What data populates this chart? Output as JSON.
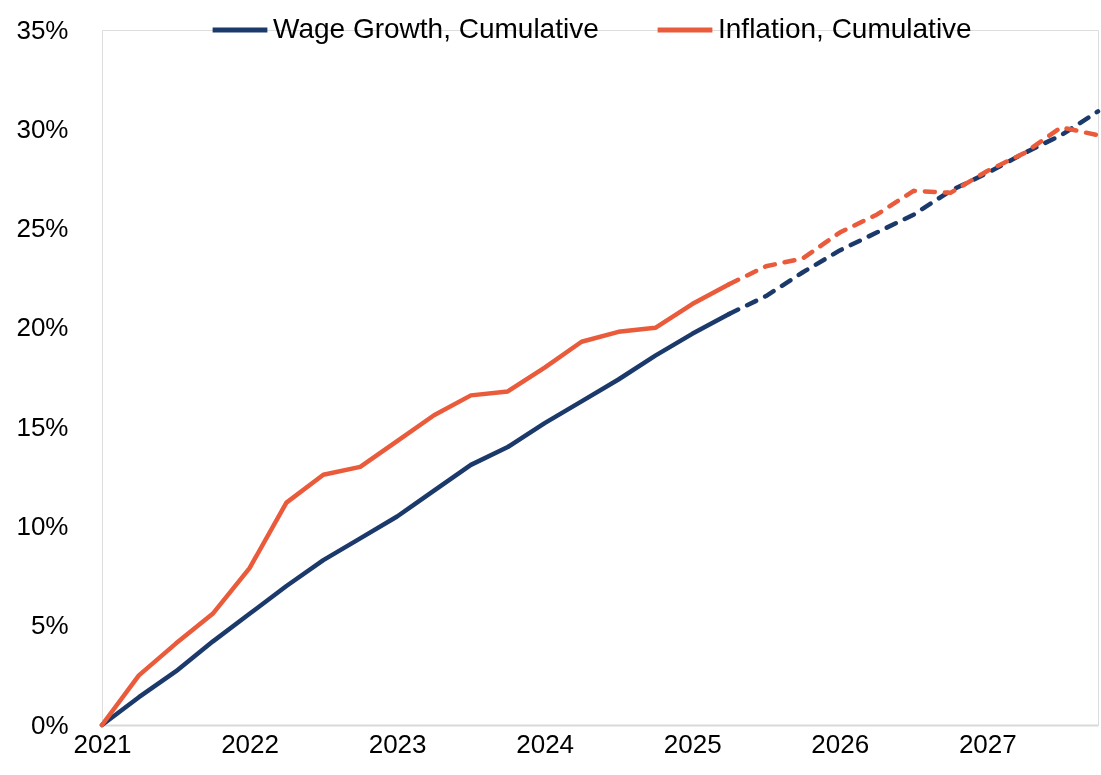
{
  "chart_data": {
    "type": "line",
    "x": [
      2021,
      2021.25,
      2021.5,
      2021.75,
      2022,
      2022.25,
      2022.5,
      2022.75,
      2023,
      2023.25,
      2023.5,
      2023.75,
      2024,
      2024.25,
      2024.5,
      2024.75,
      2025,
      2025.25,
      2025.5,
      2025.75,
      2026,
      2026.25,
      2026.5,
      2026.75,
      2027,
      2027.25,
      2027.5,
      2027.75
    ],
    "xlim": [
      2021,
      2027.75
    ],
    "xticks": [
      2021,
      2022,
      2023,
      2024,
      2025,
      2026,
      2027
    ],
    "ylim": [
      0,
      35
    ],
    "yticks": [
      {
        "value": 0,
        "label": "0%"
      },
      {
        "value": 5,
        "label": "5%"
      },
      {
        "value": 10,
        "label": "10%"
      },
      {
        "value": 15,
        "label": "15%"
      },
      {
        "value": 20,
        "label": "20%"
      },
      {
        "value": 25,
        "label": "25%"
      },
      {
        "value": 30,
        "label": "30%"
      },
      {
        "value": 35,
        "label": "35%"
      }
    ],
    "legend": "top",
    "line_style": "solid",
    "series": [
      {
        "name": "Wage Growth, Cumulative",
        "color": "#1b3a6b",
        "values": [
          0,
          1.4,
          2.7,
          4.2,
          5.6,
          7.0,
          8.3,
          9.4,
          10.5,
          11.8,
          13.1,
          14.0,
          15.2,
          16.3,
          17.4,
          18.6,
          19.7,
          20.7,
          null,
          null,
          null,
          null,
          null,
          null,
          null,
          null,
          null,
          null
        ]
      },
      {
        "name": "Inflation, Cumulative",
        "color": "#e95b3b",
        "values": [
          0,
          2.5,
          4.1,
          5.6,
          7.9,
          11.2,
          12.6,
          13.0,
          14.3,
          15.6,
          16.6,
          16.8,
          18.0,
          19.3,
          19.8,
          20.0,
          21.2,
          22.2,
          null,
          null,
          null,
          null,
          null,
          null,
          null,
          null,
          null,
          null
        ]
      },
      {
        "color": "#1b3a6b",
        "line_style": "dashed",
        "values": [
          null,
          null,
          null,
          null,
          null,
          null,
          null,
          null,
          null,
          null,
          null,
          null,
          null,
          null,
          null,
          null,
          null,
          20.7,
          21.6,
          22.8,
          23.9,
          24.8,
          25.7,
          26.9,
          27.8,
          28.8,
          29.7,
          30.9
        ]
      },
      {
        "color": "#e95b3b",
        "line_style": "dashed",
        "values": [
          null,
          null,
          null,
          null,
          null,
          null,
          null,
          null,
          null,
          null,
          null,
          null,
          null,
          null,
          null,
          null,
          null,
          22.2,
          23.1,
          23.5,
          24.8,
          25.7,
          26.9,
          26.8,
          27.9,
          28.8,
          30.1,
          29.7
        ]
      }
    ]
  }
}
